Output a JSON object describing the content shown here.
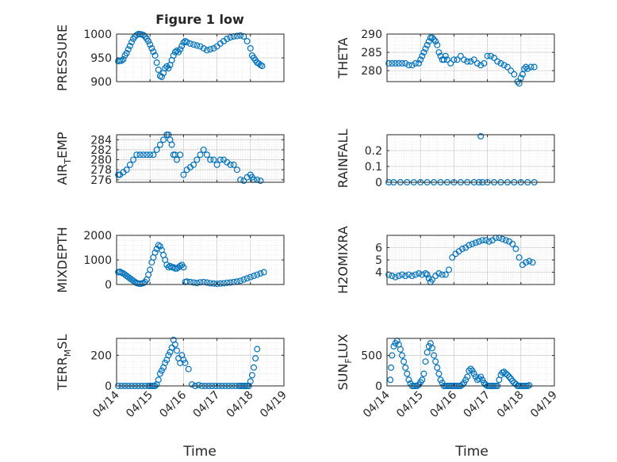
{
  "figure": {
    "title": "Figure 1 low",
    "xlabel": "Time",
    "accent_color": "#0072BD",
    "x_ticks": [
      "04/14",
      "04/15",
      "04/16",
      "04/17",
      "04/18",
      "04/19"
    ]
  },
  "chart_data": [
    {
      "type": "scatter",
      "ylabel": "PRESSURE",
      "ylim": [
        900,
        1000
      ],
      "yticks": [
        900,
        950,
        1000
      ],
      "grid": true,
      "x": [
        0.05,
        0.1,
        0.15,
        0.2,
        0.25,
        0.3,
        0.35,
        0.4,
        0.45,
        0.5,
        0.55,
        0.6,
        0.65,
        0.7,
        0.75,
        0.8,
        0.85,
        0.9,
        0.95,
        1.0,
        1.05,
        1.1,
        1.15,
        1.2,
        1.25,
        1.3,
        1.35,
        1.4,
        1.45,
        1.5,
        1.55,
        1.6,
        1.65,
        1.7,
        1.75,
        1.8,
        1.85,
        1.9,
        1.95,
        2.0,
        2.05,
        2.1,
        2.2,
        2.3,
        2.4,
        2.5,
        2.6,
        2.7,
        2.8,
        2.9,
        3.0,
        3.1,
        3.2,
        3.3,
        3.4,
        3.5,
        3.6,
        3.7,
        3.8,
        3.9,
        4.0,
        4.05,
        4.1,
        4.15,
        4.2,
        4.25,
        4.3,
        4.35
      ],
      "y": [
        943,
        944,
        944,
        947,
        955,
        960,
        968,
        975,
        983,
        990,
        995,
        998,
        1000,
        1000,
        999,
        998,
        995,
        990,
        985,
        978,
        970,
        963,
        955,
        940,
        925,
        912,
        910,
        918,
        928,
        932,
        928,
        935,
        945,
        955,
        962,
        965,
        962,
        968,
        975,
        982,
        985,
        983,
        980,
        978,
        976,
        974,
        970,
        966,
        968,
        970,
        974,
        980,
        985,
        990,
        993,
        995,
        996,
        997,
        995,
        985,
        970,
        955,
        950,
        945,
        940,
        938,
        935,
        933
      ]
    },
    {
      "type": "scatter",
      "ylabel": "THETA",
      "ylim": [
        277,
        290
      ],
      "yticks": [
        280,
        285,
        290
      ],
      "grid": true,
      "x": [
        0.05,
        0.15,
        0.25,
        0.35,
        0.45,
        0.55,
        0.65,
        0.75,
        0.85,
        0.95,
        1.0,
        1.05,
        1.1,
        1.15,
        1.2,
        1.25,
        1.3,
        1.35,
        1.4,
        1.45,
        1.5,
        1.55,
        1.6,
        1.65,
        1.7,
        1.75,
        1.8,
        1.9,
        2.0,
        2.1,
        2.2,
        2.3,
        2.4,
        2.5,
        2.6,
        2.7,
        2.8,
        2.9,
        3.0,
        3.1,
        3.2,
        3.3,
        3.4,
        3.5,
        3.6,
        3.7,
        3.8,
        3.9,
        3.95,
        4.0,
        4.05,
        4.1,
        4.15,
        4.2,
        4.3,
        4.4
      ],
      "y": [
        282,
        282,
        282,
        282,
        282,
        282,
        281.5,
        281.5,
        282,
        282,
        283,
        284,
        285,
        286,
        287,
        288,
        289,
        289,
        288.5,
        288,
        287,
        285,
        284,
        283,
        283,
        284,
        283,
        282,
        283,
        283,
        284,
        283,
        282.5,
        282.5,
        283,
        282,
        281.5,
        282,
        284,
        284,
        283.5,
        282.5,
        282,
        281.5,
        281,
        280,
        279,
        277,
        276.5,
        278,
        279,
        280.5,
        281,
        280.5,
        281,
        281
      ]
    },
    {
      "type": "scatter",
      "ylabel": "AIR_TEMP",
      "ylim": [
        275.5,
        285
      ],
      "yticks": [
        276,
        278,
        280,
        282,
        284
      ],
      "grid": true,
      "x": [
        0.05,
        0.1,
        0.2,
        0.3,
        0.4,
        0.5,
        0.6,
        0.7,
        0.8,
        0.9,
        1.0,
        1.1,
        1.2,
        1.3,
        1.4,
        1.5,
        1.55,
        1.6,
        1.65,
        1.7,
        1.75,
        1.8,
        1.9,
        2.0,
        2.1,
        2.2,
        2.3,
        2.4,
        2.5,
        2.6,
        2.7,
        2.8,
        2.9,
        3.0,
        3.1,
        3.2,
        3.3,
        3.4,
        3.5,
        3.6,
        3.7,
        3.8,
        3.9,
        4.0,
        4.05,
        4.1,
        4.2,
        4.3
      ],
      "y": [
        277,
        277,
        277.5,
        278,
        279,
        280,
        281,
        281,
        281,
        281,
        281,
        281,
        282,
        283,
        284,
        285,
        285,
        284,
        283,
        281,
        281,
        280,
        281,
        277,
        278,
        278.5,
        279,
        280,
        281,
        282,
        281,
        280,
        280,
        279,
        280,
        280,
        279.5,
        279,
        279,
        278,
        276,
        275.8,
        276.5,
        277,
        276.5,
        276,
        276,
        275.8
      ]
    },
    {
      "type": "scatter",
      "ylabel": "RAINFALL",
      "ylim": [
        0,
        0.3
      ],
      "yticks": [
        0,
        0.1,
        0.2
      ],
      "grid": true,
      "x": [
        0.05,
        0.2,
        0.4,
        0.6,
        0.8,
        1.0,
        1.2,
        1.4,
        1.6,
        1.8,
        2.0,
        2.2,
        2.4,
        2.6,
        2.75,
        2.8,
        2.85,
        3.0,
        3.2,
        3.4,
        3.6,
        3.8,
        4.0,
        4.2,
        4.4
      ],
      "y": [
        0,
        0,
        0,
        0,
        0,
        0,
        0,
        0,
        0,
        0,
        0,
        0,
        0,
        0,
        0,
        0.29,
        0,
        0,
        0,
        0,
        0,
        0,
        0,
        0,
        0
      ]
    },
    {
      "type": "scatter",
      "ylabel": "MIXDEPTH",
      "ylim": [
        0,
        2000
      ],
      "yticks": [
        0,
        1000,
        2000
      ],
      "grid": true,
      "x": [
        0.05,
        0.1,
        0.15,
        0.2,
        0.25,
        0.3,
        0.35,
        0.4,
        0.45,
        0.5,
        0.55,
        0.6,
        0.65,
        0.7,
        0.75,
        0.8,
        0.85,
        0.9,
        0.95,
        1.0,
        1.05,
        1.1,
        1.15,
        1.2,
        1.25,
        1.3,
        1.35,
        1.4,
        1.45,
        1.5,
        1.55,
        1.6,
        1.65,
        1.7,
        1.75,
        1.8,
        1.85,
        1.9,
        1.95,
        2.0,
        2.05,
        2.1,
        2.2,
        2.3,
        2.4,
        2.5,
        2.6,
        2.7,
        2.8,
        2.9,
        3.0,
        3.1,
        3.2,
        3.3,
        3.4,
        3.5,
        3.6,
        3.7,
        3.8,
        3.9,
        4.0,
        4.1,
        4.2,
        4.3,
        4.4
      ],
      "y": [
        500,
        520,
        480,
        450,
        400,
        350,
        300,
        250,
        200,
        150,
        100,
        60,
        40,
        30,
        40,
        60,
        100,
        200,
        400,
        600,
        900,
        1100,
        1300,
        1450,
        1600,
        1550,
        1400,
        1200,
        1000,
        800,
        700,
        750,
        700,
        700,
        650,
        650,
        700,
        750,
        800,
        700,
        100,
        120,
        100,
        80,
        60,
        90,
        100,
        80,
        50,
        40,
        30,
        40,
        50,
        70,
        80,
        100,
        120,
        150,
        200,
        250,
        300,
        350,
        400,
        450,
        500
      ]
    },
    {
      "type": "scatter",
      "ylabel": "H2OMIXRA",
      "ylim": [
        3,
        7
      ],
      "yticks": [
        4,
        5,
        6
      ],
      "grid": true,
      "x": [
        0.05,
        0.15,
        0.25,
        0.35,
        0.45,
        0.55,
        0.65,
        0.75,
        0.85,
        0.95,
        1.05,
        1.15,
        1.2,
        1.25,
        1.3,
        1.35,
        1.45,
        1.55,
        1.65,
        1.75,
        1.85,
        1.95,
        2.05,
        2.15,
        2.25,
        2.35,
        2.45,
        2.55,
        2.65,
        2.75,
        2.85,
        2.95,
        3.05,
        3.15,
        3.25,
        3.35,
        3.45,
        3.55,
        3.65,
        3.75,
        3.85,
        3.95,
        4.05,
        4.15,
        4.25,
        4.35
      ],
      "y": [
        3.8,
        3.7,
        3.6,
        3.7,
        3.8,
        3.7,
        3.8,
        3.7,
        3.8,
        3.9,
        3.8,
        3.9,
        3.8,
        3.5,
        3.2,
        3.4,
        3.7,
        3.9,
        3.8,
        3.8,
        4.2,
        5.2,
        5.5,
        5.7,
        5.9,
        6.0,
        6.2,
        6.3,
        6.4,
        6.5,
        6.6,
        6.6,
        6.5,
        6.6,
        6.8,
        6.8,
        6.7,
        6.6,
        6.5,
        6.3,
        5.9,
        5.2,
        4.6,
        4.8,
        4.9,
        4.8
      ]
    },
    {
      "type": "scatter",
      "ylabel": "TERR_MSL",
      "ylim": [
        0,
        310
      ],
      "yticks": [
        0,
        200
      ],
      "grid": true,
      "x": [
        0.05,
        0.15,
        0.25,
        0.35,
        0.45,
        0.55,
        0.65,
        0.75,
        0.85,
        0.95,
        1.0,
        1.05,
        1.1,
        1.15,
        1.2,
        1.25,
        1.3,
        1.35,
        1.4,
        1.45,
        1.5,
        1.55,
        1.6,
        1.65,
        1.7,
        1.75,
        1.8,
        1.85,
        1.9,
        1.95,
        2.0,
        2.05,
        2.15,
        2.25,
        2.35,
        2.45,
        2.55,
        2.65,
        2.75,
        2.85,
        2.95,
        3.05,
        3.15,
        3.25,
        3.35,
        3.45,
        3.55,
        3.65,
        3.7,
        3.75,
        3.8,
        3.85,
        3.9,
        3.95,
        4.0,
        4.05,
        4.1,
        4.15,
        4.2
      ],
      "y": [
        0,
        0,
        0,
        0,
        0,
        0,
        0,
        0,
        0,
        0,
        0,
        0,
        0,
        0,
        10,
        40,
        80,
        100,
        120,
        150,
        170,
        200,
        220,
        250,
        300,
        270,
        230,
        180,
        150,
        200,
        170,
        150,
        110,
        10,
        0,
        5,
        0,
        0,
        0,
        0,
        0,
        0,
        0,
        0,
        0,
        0,
        0,
        0,
        0,
        0,
        0,
        0,
        0,
        0,
        30,
        70,
        120,
        180,
        240
      ]
    },
    {
      "type": "scatter",
      "ylabel": "SUN_FLUX",
      "ylim": [
        0,
        780
      ],
      "yticks": [
        0,
        500
      ],
      "grid": true,
      "x": [
        0.1,
        0.12,
        0.15,
        0.2,
        0.25,
        0.3,
        0.35,
        0.4,
        0.45,
        0.5,
        0.55,
        0.6,
        0.65,
        0.7,
        0.75,
        0.8,
        0.85,
        0.9,
        0.95,
        1.0,
        1.05,
        1.1,
        1.15,
        1.2,
        1.25,
        1.3,
        1.35,
        1.4,
        1.45,
        1.5,
        1.55,
        1.6,
        1.65,
        1.7,
        1.75,
        1.8,
        1.85,
        1.9,
        1.95,
        2.0,
        2.05,
        2.1,
        2.15,
        2.2,
        2.25,
        2.3,
        2.35,
        2.4,
        2.45,
        2.5,
        2.55,
        2.6,
        2.65,
        2.7,
        2.75,
        2.8,
        2.85,
        2.9,
        2.95,
        3.0,
        3.05,
        3.1,
        3.15,
        3.2,
        3.25,
        3.3,
        3.35,
        3.4,
        3.45,
        3.5,
        3.55,
        3.6,
        3.65,
        3.7,
        3.75,
        3.8,
        3.85,
        3.9,
        3.95,
        4.0,
        4.05,
        4.1,
        4.15,
        4.2,
        4.25
      ],
      "y": [
        100,
        300,
        500,
        650,
        700,
        740,
        680,
        600,
        500,
        400,
        300,
        200,
        100,
        40,
        0,
        0,
        0,
        0,
        20,
        60,
        100,
        200,
        400,
        550,
        650,
        700,
        620,
        500,
        400,
        300,
        200,
        100,
        50,
        0,
        0,
        0,
        0,
        0,
        0,
        0,
        0,
        0,
        0,
        0,
        20,
        50,
        100,
        150,
        250,
        280,
        250,
        200,
        150,
        100,
        120,
        150,
        100,
        50,
        20,
        0,
        0,
        0,
        0,
        0,
        0,
        0,
        100,
        180,
        220,
        230,
        200,
        180,
        150,
        120,
        80,
        50,
        30,
        0,
        0,
        0,
        0,
        0,
        0,
        0,
        10
      ]
    }
  ]
}
